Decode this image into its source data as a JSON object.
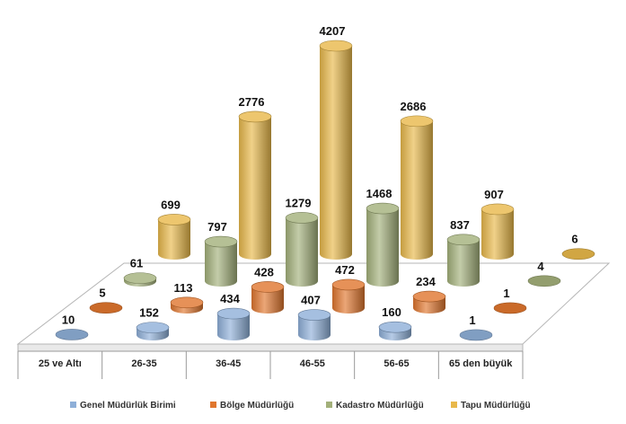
{
  "chart_data": {
    "type": "bar",
    "title": "",
    "xlabel": "",
    "ylabel": "",
    "categories": [
      "25 ve Altı",
      "26-35",
      "36-45",
      "46-55",
      "56-65",
      "65 den büyük"
    ],
    "series": [
      {
        "name": "Genel Müdürlük Birimi",
        "values": [
          10,
          152,
          434,
          407,
          160,
          1
        ],
        "color": "#8EAFD8"
      },
      {
        "name": "Bölge Müdürlüğü",
        "values": [
          5,
          113,
          428,
          472,
          234,
          1
        ],
        "color": "#E0762E"
      },
      {
        "name": "Kadastro Müdürlüğü",
        "values": [
          61,
          797,
          1279,
          1468,
          837,
          4
        ],
        "color": "#A3B07A"
      },
      {
        "name": "Tapu Müdürlüğü",
        "values": [
          699,
          2776,
          4207,
          2686,
          907,
          6
        ],
        "color": "#E8B84A"
      }
    ],
    "legend_position": "bottom",
    "grid": false
  }
}
